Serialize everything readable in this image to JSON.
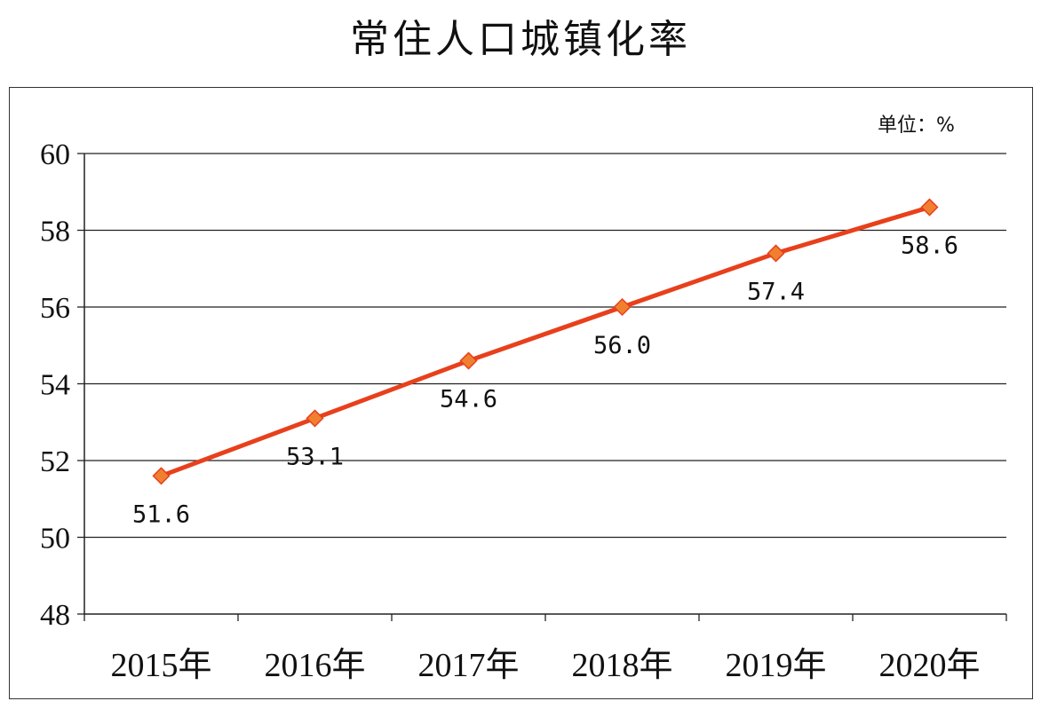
{
  "chart_data": {
    "type": "line",
    "title": "常住人口城镇化率",
    "unit_label": "单位：%",
    "categories": [
      "2015年",
      "2016年",
      "2017年",
      "2018年",
      "2019年",
      "2020年"
    ],
    "series": [
      {
        "values": [
          51.6,
          53.1,
          54.6,
          56.0,
          57.4,
          58.6
        ]
      }
    ],
    "data_labels": [
      "51.6",
      "53.1",
      "54.6",
      "56.0",
      "57.4",
      "58.6"
    ],
    "ylim": [
      48,
      60
    ],
    "yticks": [
      48,
      50,
      52,
      54,
      56,
      58,
      60
    ],
    "grid": true,
    "line_color": "#e8401c",
    "marker_color": "#f08030",
    "legend": "none"
  }
}
